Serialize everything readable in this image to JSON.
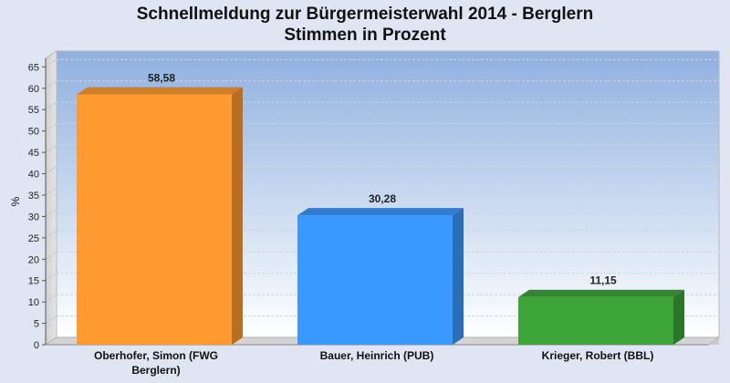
{
  "chart_data": {
    "type": "bar",
    "title": "Schnellmeldung zur Bürgermeisterwahl 2014 - Berglern",
    "subtitle": "Stimmen in Prozent",
    "ylabel": "%",
    "xlabel": "",
    "ylim": [
      0,
      67
    ],
    "yticks": [
      0,
      5,
      10,
      15,
      20,
      25,
      30,
      35,
      40,
      45,
      50,
      55,
      60,
      65
    ],
    "grid": true,
    "categories": [
      [
        "Oberhofer, Simon (FWG",
        "Berglern)"
      ],
      [
        "Bauer, Heinrich (PUB)"
      ],
      [
        "Krieger, Robert (BBL)"
      ]
    ],
    "values": [
      58.58,
      30.28,
      11.15
    ],
    "value_labels": [
      "58,58",
      "30,28",
      "11,15"
    ],
    "colors": [
      "#ff9a30",
      "#3a99ff",
      "#3da43a"
    ]
  }
}
